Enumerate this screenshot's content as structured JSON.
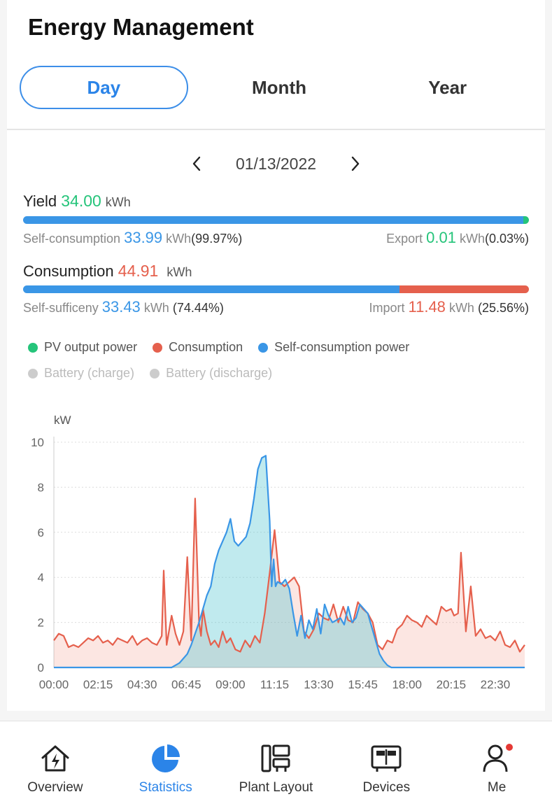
{
  "page_title": "Energy Management",
  "tabs": [
    {
      "label": "Day",
      "active": true
    },
    {
      "label": "Month",
      "active": false
    },
    {
      "label": "Year",
      "active": false
    }
  ],
  "date": {
    "value": "01/13/2022",
    "prev_icon": "chevron-left-icon",
    "next_icon": "chevron-right-icon"
  },
  "yield": {
    "label": "Yield",
    "value": "34.00",
    "unit": "kWh",
    "self_consumption": {
      "label": "Self-consumption",
      "value": "33.99",
      "unit": "kWh",
      "pct": "(99.97%)",
      "fraction": 0.9997
    },
    "export": {
      "label": "Export",
      "value": "0.01",
      "unit": "kWh",
      "pct": "(0.03%)",
      "fraction": 0.0003
    }
  },
  "consumption": {
    "label": "Consumption",
    "value": "44.91",
    "unit": "kWh",
    "self_sufficiency": {
      "label": "Self-sufficeny",
      "value": "33.43",
      "unit": "kWh",
      "pct": "(74.44%)",
      "fraction": 0.7444
    },
    "import": {
      "label": "Import",
      "value": "11.48",
      "unit": "kWh",
      "pct": "(25.56%)",
      "fraction": 0.2556
    }
  },
  "legend": [
    {
      "label": "PV output power",
      "color": "#25c47a",
      "enabled": true
    },
    {
      "label": "Consumption",
      "color": "#e5604d",
      "enabled": true
    },
    {
      "label": "Self-consumption power",
      "color": "#3a96e6",
      "enabled": true
    },
    {
      "label": "Battery (charge)",
      "color": "#cccccc",
      "enabled": false
    },
    {
      "label": "Battery (discharge)",
      "color": "#cccccc",
      "enabled": false
    }
  ],
  "colors": {
    "accent": "#2b84e8",
    "green": "#25c47a",
    "red": "#e5604d",
    "blue": "#3a96e6"
  },
  "chart_data": {
    "type": "area",
    "ylabel": "kW",
    "ylim": [
      0,
      10
    ],
    "yticks": [
      "0",
      "2",
      "4",
      "6",
      "8",
      "10"
    ],
    "xlim": [
      0,
      24
    ],
    "xtick_labels": [
      "00:00",
      "02:15",
      "04:30",
      "06:45",
      "09:00",
      "11:15",
      "13:30",
      "15:45",
      "18:00",
      "20:15",
      "22:30"
    ],
    "grid": true,
    "series": [
      {
        "name": "Consumption",
        "color": "#e5604d",
        "x": [
          0,
          0.25,
          0.5,
          0.75,
          1,
          1.25,
          1.5,
          1.75,
          2,
          2.25,
          2.5,
          2.75,
          3,
          3.25,
          3.5,
          3.75,
          4,
          4.25,
          4.5,
          4.75,
          5,
          5.25,
          5.5,
          5.6,
          5.75,
          6,
          6.2,
          6.4,
          6.6,
          6.8,
          7,
          7.2,
          7.4,
          7.5,
          7.6,
          7.8,
          8,
          8.2,
          8.4,
          8.6,
          8.8,
          9,
          9.25,
          9.5,
          9.75,
          10,
          10.25,
          10.5,
          10.75,
          11,
          11.25,
          11.5,
          11.75,
          12,
          12.25,
          12.5,
          12.75,
          13,
          13.25,
          13.5,
          13.75,
          14,
          14.25,
          14.5,
          14.75,
          15,
          15.25,
          15.5,
          15.75,
          16,
          16.25,
          16.5,
          16.75,
          17,
          17.25,
          17.5,
          17.75,
          18,
          18.25,
          18.5,
          18.75,
          19,
          19.25,
          19.5,
          19.75,
          20,
          20.25,
          20.4,
          20.6,
          20.75,
          21,
          21.25,
          21.5,
          21.75,
          22,
          22.25,
          22.5,
          22.75,
          23,
          23.25,
          23.5,
          23.75,
          24
        ],
        "y": [
          1.2,
          1.5,
          1.4,
          0.9,
          1.0,
          0.9,
          1.1,
          1.3,
          1.2,
          1.4,
          1.1,
          1.2,
          1.0,
          1.3,
          1.2,
          1.1,
          1.4,
          1.0,
          1.2,
          1.3,
          1.1,
          1.0,
          1.4,
          4.3,
          1.0,
          2.3,
          1.5,
          1.0,
          1.6,
          4.9,
          1.2,
          7.5,
          2.0,
          1.4,
          2.6,
          1.6,
          1.0,
          1.2,
          0.9,
          1.6,
          1.1,
          1.3,
          0.8,
          0.7,
          1.2,
          0.9,
          1.4,
          1.1,
          2.4,
          4.2,
          6.1,
          3.8,
          3.6,
          3.8,
          4.0,
          3.6,
          1.6,
          1.3,
          1.7,
          2.4,
          2.2,
          2.1,
          2.8,
          2.0,
          2.7,
          2.1,
          2.0,
          2.9,
          2.6,
          2.4,
          2.0,
          1.0,
          0.8,
          1.2,
          1.1,
          1.7,
          1.9,
          2.3,
          2.1,
          2.0,
          1.8,
          2.3,
          2.1,
          1.9,
          2.7,
          2.5,
          2.6,
          2.3,
          2.4,
          5.1,
          1.6,
          3.6,
          1.4,
          1.7,
          1.3,
          1.4,
          1.2,
          1.6,
          1.0,
          0.9,
          1.2,
          0.7,
          1.0
        ]
      },
      {
        "name": "Self-consumption power",
        "color": "#3a96e6",
        "x": [
          0,
          6,
          6.4,
          6.8,
          7,
          7.2,
          7.4,
          7.6,
          7.8,
          8,
          8.2,
          8.4,
          8.6,
          8.8,
          9,
          9.2,
          9.4,
          9.6,
          9.8,
          10,
          10.2,
          10.4,
          10.6,
          10.8,
          11,
          11.1,
          11.2,
          11.3,
          11.4,
          11.6,
          11.8,
          12,
          12.2,
          12.4,
          12.6,
          12.8,
          13,
          13.2,
          13.4,
          13.6,
          13.8,
          14,
          14.2,
          14.4,
          14.6,
          14.8,
          15,
          15.2,
          15.4,
          15.6,
          15.8,
          16,
          16.2,
          16.4,
          16.6,
          16.8,
          17,
          17.2,
          17.4,
          17.6,
          17.8,
          18,
          24
        ],
        "y": [
          0,
          0,
          0.2,
          0.6,
          1.0,
          1.5,
          2.0,
          2.6,
          3.2,
          3.6,
          4.6,
          5.2,
          5.6,
          6.0,
          6.6,
          5.6,
          5.4,
          5.6,
          5.8,
          6.4,
          7.5,
          8.8,
          9.3,
          9.4,
          6.5,
          3.6,
          4.8,
          3.6,
          3.8,
          3.7,
          3.9,
          3.5,
          2.4,
          1.4,
          2.3,
          1.3,
          2.1,
          1.7,
          2.6,
          1.5,
          2.8,
          2.3,
          2.0,
          2.1,
          2.2,
          1.9,
          2.7,
          2.0,
          2.2,
          2.8,
          2.6,
          2.4,
          1.8,
          1.2,
          0.6,
          0.3,
          0.1,
          0,
          0,
          0,
          0,
          0,
          0
        ]
      }
    ]
  },
  "bottom_nav": [
    {
      "label": "Overview",
      "icon": "house-bolt-icon",
      "active": false
    },
    {
      "label": "Statistics",
      "icon": "pie-chart-icon",
      "active": true
    },
    {
      "label": "Plant Layout",
      "icon": "plant-layout-icon",
      "active": false
    },
    {
      "label": "Devices",
      "icon": "devices-icon",
      "active": false
    },
    {
      "label": "Me",
      "icon": "person-icon",
      "active": false
    }
  ]
}
